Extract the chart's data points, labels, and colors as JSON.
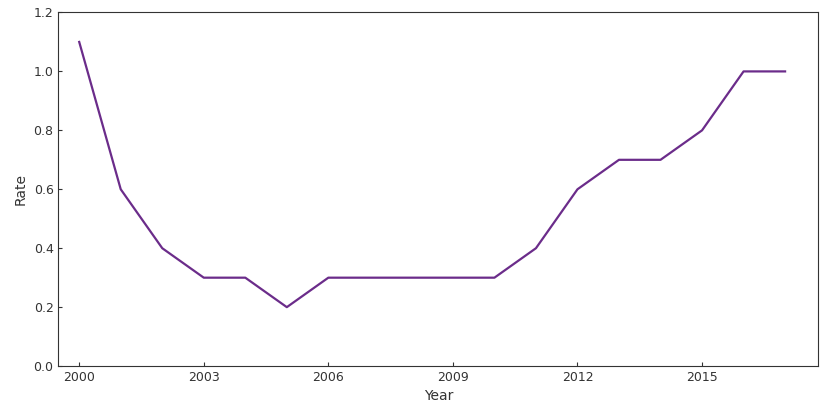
{
  "years": [
    2000,
    2001,
    2002,
    2003,
    2004,
    2005,
    2006,
    2007,
    2008,
    2009,
    2010,
    2011,
    2012,
    2013,
    2014,
    2015,
    2016,
    2017
  ],
  "rates": [
    1.1,
    0.6,
    0.4,
    0.3,
    0.3,
    0.2,
    0.3,
    0.3,
    0.3,
    0.3,
    0.3,
    0.4,
    0.6,
    0.7,
    0.7,
    0.8,
    1.0,
    1.0
  ],
  "xlabel": "Year",
  "ylabel": "Rate",
  "xlim": [
    1999.5,
    2017.8
  ],
  "ylim": [
    0.0,
    1.2
  ],
  "xticks": [
    2000,
    2003,
    2006,
    2009,
    2012,
    2015
  ],
  "yticks": [
    0.0,
    0.2,
    0.4,
    0.6,
    0.8,
    1.0,
    1.2
  ],
  "line_color": "#6B2C8A",
  "line_width": 1.6,
  "background_color": "#ffffff",
  "spine_color": "#333333",
  "tick_label_color": "#333333",
  "axis_label_color": "#333333"
}
